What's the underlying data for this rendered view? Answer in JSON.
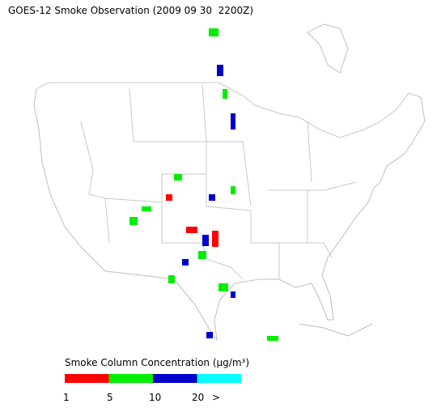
{
  "title": "GOES-12 Smoke Observation (2009 09 30  2200Z)",
  "legend": {
    "title": "Smoke Column Concentration (μg/m³)",
    "colors": [
      "#ff0000",
      "#00ee00",
      "#0000cc",
      "#00ffff"
    ],
    "ticks": [
      "1",
      "5",
      "10",
      "20",
      ">"
    ]
  }
}
